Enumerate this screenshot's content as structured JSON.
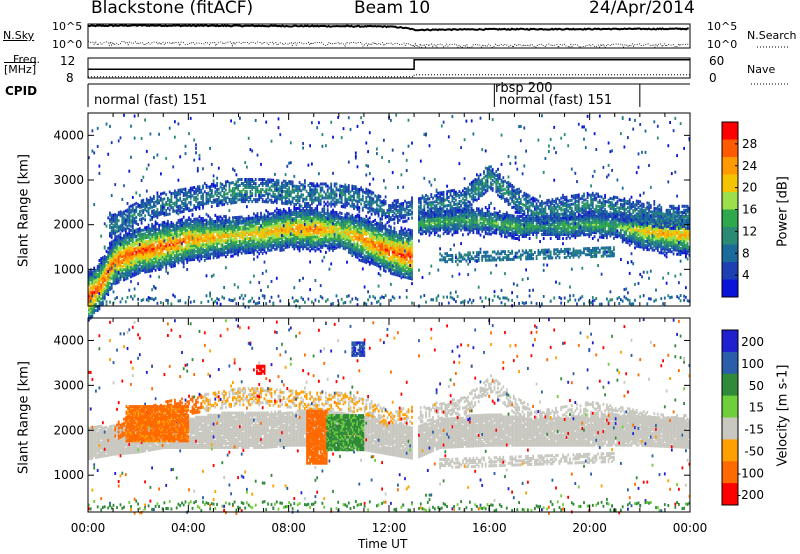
{
  "header": {
    "station": "Blackstone (fitACF)",
    "beam": "Beam 10",
    "date": "24/Apr/2014"
  },
  "top_panels": {
    "nsky_label": "N.Sky",
    "nsearch_label": "N.Search",
    "noise_ticks": [
      "10^5",
      "10^0"
    ],
    "freq_label": "Freq.",
    "freq_unit": "[MHz]",
    "freq_ticks": [
      "12",
      "8"
    ],
    "nave_label": "Nave",
    "nave_ticks": [
      "60",
      "0"
    ],
    "cpid_label": "CPID",
    "cpid_segments": [
      {
        "label": "normal (fast) 151",
        "start_h": 0,
        "end_h": 13
      },
      {
        "label": "rbsp 200",
        "start_h": 16,
        "end_h": 16
      },
      {
        "label": "normal (fast) 151",
        "start_h": 16,
        "end_h": 22
      }
    ]
  },
  "power_colorbar": {
    "label": "Power [dB]",
    "ticks": [
      "28",
      "24",
      "20",
      "16",
      "12",
      "8",
      "4"
    ],
    "colors": [
      "#ff0000",
      "#ff5a00",
      "#ff9a00",
      "#f5c400",
      "#9be04a",
      "#2ea84a",
      "#2a8a74",
      "#1a6a9a",
      "#1d3fb4",
      "#0a14d8"
    ]
  },
  "velocity_colorbar": {
    "label": "Velocity [m s-1]",
    "ticks": [
      "200",
      "100",
      "50",
      "15",
      "-15",
      "-50",
      "-100",
      "-200"
    ],
    "colors": [
      "#2020d0",
      "#2a5ea8",
      "#2f8a3a",
      "#6fcf3a",
      "#c8c8c0",
      "#ffa000",
      "#ff6a00",
      "#ff0000"
    ]
  },
  "xaxis": {
    "ticks": [
      "00:00",
      "04:00",
      "08:00",
      "12:00",
      "16:00",
      "20:00",
      "00:00"
    ],
    "label": "Time UT"
  },
  "chart_data": [
    {
      "type": "line",
      "title": "N.Sky / N.Search",
      "x_unit": "hours UT",
      "ylim": [
        1,
        100000
      ],
      "log_scale": true,
      "series": [
        {
          "name": "N.Sky",
          "x": [
            0,
            2,
            4,
            6,
            8,
            10,
            12,
            13,
            16,
            20,
            24
          ],
          "values": [
            40000,
            50000,
            45000,
            42000,
            38000,
            35000,
            30000,
            6000,
            8000,
            9000,
            10000
          ]
        },
        {
          "name": "N.Search",
          "x": [
            0,
            2,
            4,
            6,
            8,
            10,
            12,
            13,
            16,
            20,
            24
          ],
          "values": [
            15,
            12,
            10,
            12,
            10,
            9,
            10,
            5,
            4,
            4,
            5
          ]
        }
      ]
    },
    {
      "type": "line",
      "title": "Freq. / Nave",
      "x_unit": "hours UT",
      "series": [
        {
          "name": "Freq. [MHz]",
          "x": [
            0,
            13,
            13,
            24
          ],
          "values": [
            10.6,
            10.6,
            13.5,
            13.5
          ],
          "ylim": [
            8,
            14
          ]
        },
        {
          "name": "Nave",
          "x": [
            0,
            13,
            13,
            24
          ],
          "values": [
            4,
            4,
            10,
            10
          ],
          "ylim": [
            0,
            60
          ]
        }
      ]
    },
    {
      "type": "heatmap",
      "title": "Power [dB]",
      "xlabel": "Time UT",
      "ylabel": "Slant Range [km]",
      "xlim": [
        0,
        24
      ],
      "ylim": [
        180,
        4500
      ],
      "zlim": [
        0,
        30
      ],
      "yticks": [
        1000,
        2000,
        3000,
        4000
      ],
      "main_band": {
        "hours": [
          0,
          0.5,
          1,
          2,
          3,
          4,
          5,
          6,
          7,
          8,
          9,
          10,
          11,
          12,
          13,
          13.1,
          14,
          15,
          16,
          17,
          18,
          19,
          20,
          21,
          22,
          23,
          24
        ],
        "range_km": [
          400,
          700,
          1200,
          1450,
          1550,
          1700,
          1750,
          1800,
          1850,
          1950,
          1950,
          1900,
          1700,
          1450,
          1300,
          2050,
          2100,
          2150,
          2100,
          2000,
          2000,
          2000,
          2050,
          2000,
          1900,
          1850,
          1800
        ],
        "peak_db": [
          28,
          26,
          26,
          26,
          26,
          24,
          22,
          20,
          22,
          22,
          24,
          20,
          24,
          26,
          28,
          14,
          14,
          14,
          14,
          14,
          12,
          14,
          14,
          14,
          20,
          22,
          22
        ]
      },
      "upper_band": {
        "hours": [
          1,
          2,
          3,
          4,
          5,
          6,
          7,
          8,
          9,
          10,
          11,
          12,
          14,
          15,
          16,
          17,
          18,
          19,
          20,
          21,
          22,
          23,
          24
        ],
        "range_km": [
          2000,
          2300,
          2500,
          2600,
          2700,
          2800,
          2800,
          2750,
          2700,
          2700,
          2600,
          2300,
          2500,
          2600,
          3100,
          2600,
          2300,
          2400,
          2500,
          2400,
          2300,
          2200,
          2200
        ],
        "peak_db": [
          10,
          10,
          10,
          10,
          10,
          12,
          10,
          12,
          10,
          10,
          10,
          8,
          10,
          10,
          12,
          10,
          10,
          10,
          10,
          10,
          10,
          10,
          10
        ]
      }
    },
    {
      "type": "heatmap",
      "title": "Velocity [m s-1]",
      "xlabel": "Time UT",
      "ylabel": "Slant Range [km]",
      "xlim": [
        0,
        24
      ],
      "ylim": [
        180,
        4500
      ],
      "zlim": [
        -200,
        200
      ],
      "yticks": [
        1000,
        2000,
        3000,
        4000
      ],
      "gray_band": {
        "hours": [
          0,
          1,
          2,
          3,
          4,
          5,
          6,
          7,
          8,
          9,
          10,
          11,
          12,
          13,
          14,
          16,
          18,
          20,
          22,
          24
        ],
        "range_low_km": [
          1400,
          1500,
          1550,
          1650,
          1650,
          1650,
          1650,
          1650,
          1700,
          1700,
          1700,
          1600,
          1500,
          1400,
          1650,
          1700,
          1700,
          1700,
          1700,
          1650
        ],
        "range_high_km": [
          2100,
          2150,
          2150,
          2200,
          2300,
          2400,
          2450,
          2450,
          2450,
          2500,
          2450,
          2350,
          2200,
          2100,
          2300,
          2400,
          2300,
          2350,
          2350,
          2300
        ],
        "velocity_m_s": -5
      },
      "features": [
        {
          "name": "negative velocity blob",
          "hours": [
            8.7,
            9.5
          ],
          "range_km": [
            1300,
            2500
          ],
          "velocity_m_s": -80
        },
        {
          "name": "red spot",
          "hours": [
            6.7,
            7.0
          ],
          "range_km": [
            3300,
            3500
          ],
          "velocity_m_s": -200
        },
        {
          "name": "green region",
          "hours": [
            9.5,
            11
          ],
          "range_km": [
            1600,
            2400
          ],
          "velocity_m_s": 40
        },
        {
          "name": "blue spot",
          "hours": [
            10.5,
            11
          ],
          "range_km": [
            3700,
            4000
          ],
          "velocity_m_s": 150
        },
        {
          "name": "orange arc",
          "hours": [
            1.5,
            4
          ],
          "range_km": [
            1800,
            2600
          ],
          "velocity_m_s": -60
        }
      ]
    }
  ]
}
